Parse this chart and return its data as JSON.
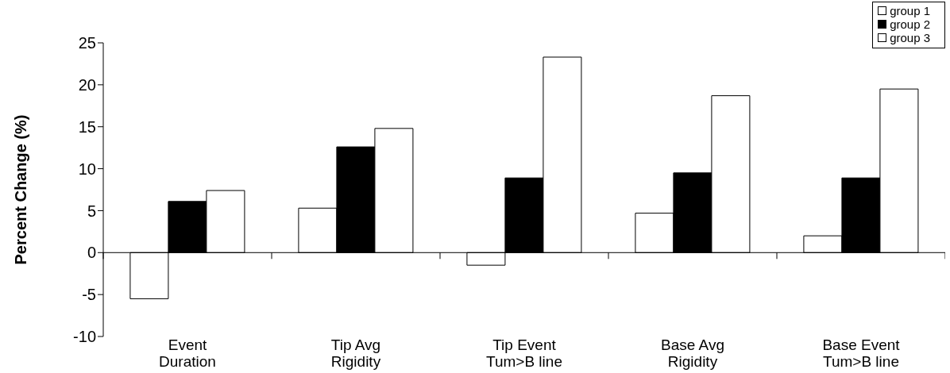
{
  "chart_data": {
    "type": "bar",
    "ylabel": "Percent Change (%)",
    "categories": [
      "Event\nDuration",
      "Tip Avg\nRigidity",
      "Tip Event\nTum>B line",
      "Base Avg\nRigidity",
      "Base Event\nTum>B line"
    ],
    "series": [
      {
        "name": "group 1",
        "color": "#ffffff",
        "values": [
          -5.5,
          5.3,
          -1.5,
          4.7,
          2.0
        ]
      },
      {
        "name": "group 2",
        "color": "#000000",
        "values": [
          6.1,
          12.6,
          8.9,
          9.5,
          8.9
        ]
      },
      {
        "name": "group 3",
        "color": "#ffffff",
        "values": [
          7.4,
          14.8,
          23.3,
          18.7,
          19.5
        ]
      }
    ],
    "ylim": [
      -10,
      25
    ],
    "yticks": [
      -10,
      -5,
      0,
      5,
      10,
      15,
      20,
      25
    ],
    "legend": "top right"
  }
}
